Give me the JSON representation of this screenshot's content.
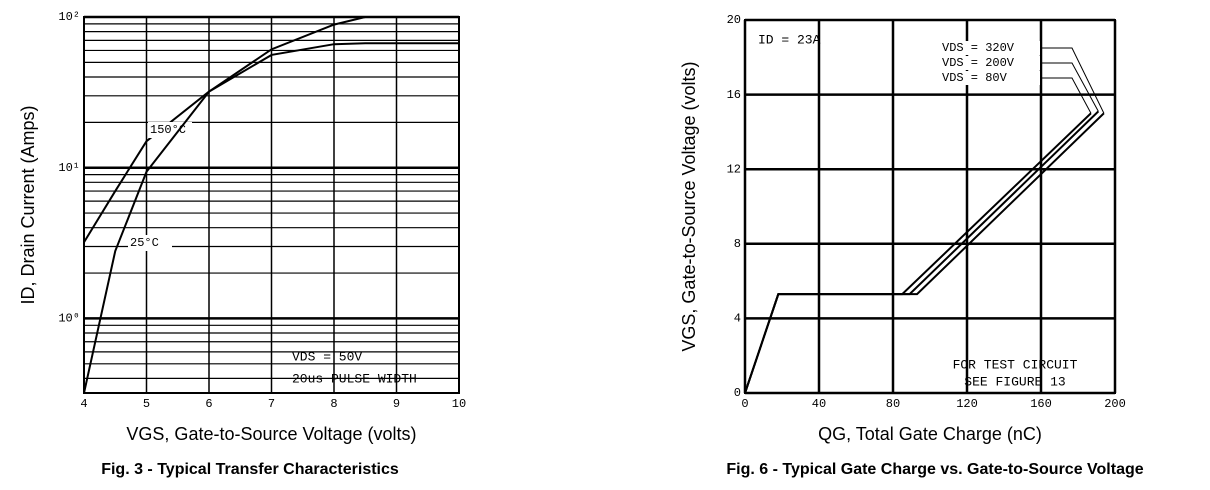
{
  "chart_data": [
    {
      "type": "line",
      "log_y": true,
      "grid": true,
      "minor_grid": true,
      "title": "Fig. 3 - Typical Transfer Characteristics",
      "xlabel": "VGS, Gate-to-Source Voltage (volts)",
      "ylabel": "ID, Drain Current (Amps)",
      "x": [
        4,
        4.5,
        5,
        6,
        7,
        8,
        8.5,
        9,
        10
      ],
      "series": [
        {
          "name": "150°C",
          "color": "#000000",
          "values": [
            3.2,
            7,
            15,
            32,
            56,
            66,
            67,
            67,
            67
          ]
        },
        {
          "name": "25°C",
          "color": "#000000",
          "values": [
            0.32,
            2.8,
            9.4,
            32,
            61,
            89,
            100,
            100,
            100
          ]
        }
      ],
      "annotations": [
        "VDS = 50V",
        "20us PULSE WIDTH"
      ],
      "xlim": [
        4,
        10
      ],
      "xticks": [
        4,
        5,
        6,
        7,
        8,
        9,
        10
      ],
      "ylim": [
        0.32,
        100
      ],
      "yticks": [
        {
          "value": 1,
          "label": "10⁰"
        },
        {
          "value": 10,
          "label": "10¹"
        },
        {
          "value": 100,
          "label": "10²"
        }
      ]
    },
    {
      "type": "line",
      "grid": true,
      "title": "Fig. 6 - Typical Gate Charge vs. Gate-to-Source Voltage",
      "xlabel": "QG, Total Gate Charge (nC)",
      "ylabel": "VGS, Gate-to-Source Voltage (volts)",
      "series": [
        {
          "name": "VDS = 320V",
          "color": "#000000",
          "x": [
            0,
            18,
            93,
            194
          ],
          "values": [
            0,
            5.3,
            5.3,
            15
          ]
        },
        {
          "name": "VDS = 200V",
          "color": "#000000",
          "x": [
            0,
            18,
            89,
            191
          ],
          "values": [
            0,
            5.3,
            5.3,
            15.1
          ]
        },
        {
          "name": "VDS = 80V",
          "color": "#000000",
          "x": [
            0,
            18,
            85,
            187
          ],
          "values": [
            0,
            5.3,
            5.3,
            15
          ]
        }
      ],
      "annotations": [
        "ID = 23A",
        "FOR TEST CIRCUIT",
        "SEE FIGURE 13"
      ],
      "xlim": [
        0,
        200
      ],
      "xticks": [
        0,
        40,
        80,
        120,
        160,
        200
      ],
      "ylim": [
        0,
        20
      ],
      "yticks": [
        0,
        4,
        8,
        12,
        16,
        20
      ]
    }
  ]
}
